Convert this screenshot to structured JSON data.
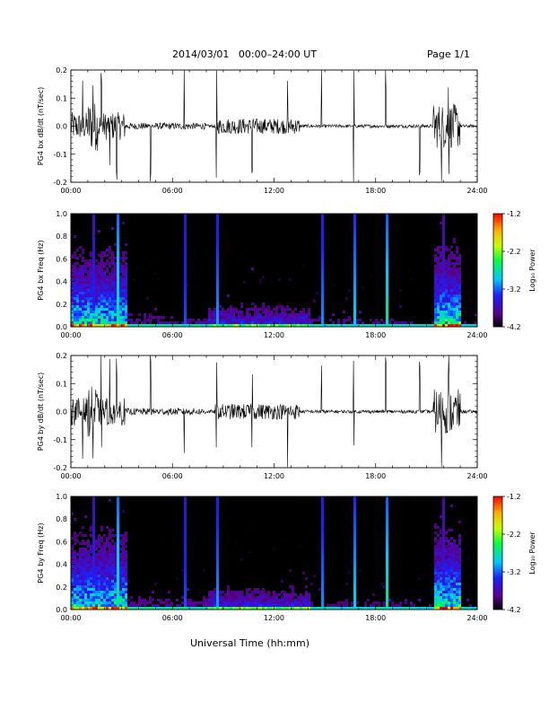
{
  "header": {
    "title": "2014/03/01   00:00–24:00 UT",
    "page": "Page 1/1"
  },
  "x_axis_label": "Universal Time (hh:mm)",
  "chart_data": [
    {
      "type": "line",
      "ylabel": "PG4 bx dB/dt (nT/sec)",
      "xlim": [
        0,
        24
      ],
      "ylim": [
        -0.2,
        0.2
      ],
      "x_ticks": [
        "00:00",
        "06:00",
        "12:00",
        "18:00",
        "24:00"
      ],
      "y_ticks": [
        "0.2",
        "0.1",
        "0.0",
        "-0.1",
        "-0.2"
      ],
      "spikes_hours": [
        0.7,
        1.3,
        1.8,
        2.3,
        2.7,
        4.7,
        6.7,
        8.6,
        10.7,
        12.8,
        14.8,
        16.7,
        18.6,
        20.6,
        21.9,
        22.3
      ],
      "grid": false
    },
    {
      "type": "heatmap",
      "ylabel": "PG4 bx Freq (Hz)",
      "xlim": [
        0,
        24
      ],
      "ylim": [
        0,
        1.0
      ],
      "x_ticks": [
        "00:00",
        "06:00",
        "12:00",
        "18:00",
        "24:00"
      ],
      "y_ticks": [
        "1.0",
        "0.8",
        "0.6",
        "0.4",
        "0.2",
        "0.0"
      ],
      "colorbar": {
        "label": "Log₁₀ Power",
        "ticks": [
          "-1.2",
          "-2.2",
          "-3.2",
          "-4.2"
        ],
        "range": [
          -4.2,
          -1.2
        ]
      }
    },
    {
      "type": "line",
      "ylabel": "PG4 by dB/dt (nT/sec)",
      "xlim": [
        0,
        24
      ],
      "ylim": [
        -0.2,
        0.2
      ],
      "x_ticks": [
        "00:00",
        "06:00",
        "12:00",
        "18:00",
        "24:00"
      ],
      "y_ticks": [
        "0.2",
        "0.1",
        "0.0",
        "-0.1",
        "-0.2"
      ],
      "spikes_hours": [
        0.7,
        1.3,
        1.8,
        2.3,
        2.7,
        4.7,
        6.7,
        8.6,
        10.7,
        12.8,
        14.8,
        16.7,
        18.6,
        20.6,
        21.9,
        22.3
      ],
      "grid": false
    },
    {
      "type": "heatmap",
      "ylabel": "PG4 by Freq (Hz)",
      "xlim": [
        0,
        24
      ],
      "ylim": [
        0,
        1.0
      ],
      "x_ticks": [
        "00:00",
        "06:00",
        "12:00",
        "18:00",
        "24:00"
      ],
      "y_ticks": [
        "1.0",
        "0.8",
        "0.6",
        "0.4",
        "0.2",
        "0.0"
      ],
      "colorbar": {
        "label": "Log₁₀ Power",
        "ticks": [
          "-1.2",
          "-2.2",
          "-3.2",
          "-4.2"
        ],
        "range": [
          -4.2,
          -1.2
        ]
      }
    }
  ]
}
